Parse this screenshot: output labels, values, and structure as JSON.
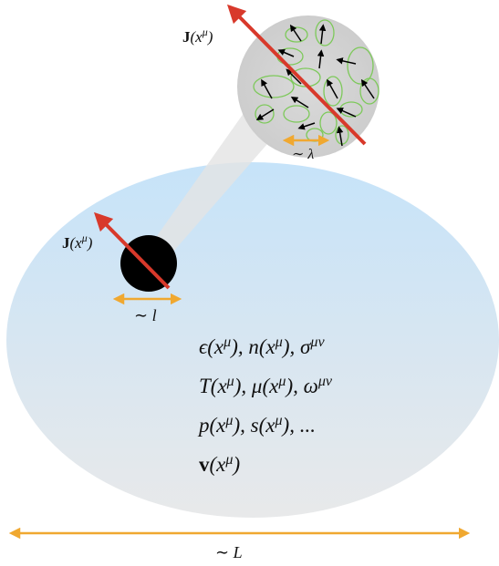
{
  "labels": {
    "current_top": [
      {
        "text": "J",
        "bold": true
      },
      {
        "text": "(x"
      },
      {
        "text": "μ",
        "sup": true
      },
      {
        "text": ")"
      }
    ],
    "current_left": [
      {
        "text": "J",
        "bold": true
      },
      {
        "text": "(x"
      },
      {
        "text": "μ",
        "sup": true
      },
      {
        "text": ")"
      }
    ],
    "lambda_scale": [
      {
        "text": "∼ λ"
      }
    ],
    "l_scale": [
      {
        "text": "∼ l"
      }
    ],
    "L_scale": [
      {
        "text": "∼ L"
      }
    ]
  },
  "equations": [
    [
      {
        "text": "ϵ(x"
      },
      {
        "text": "μ",
        "sup": true
      },
      {
        "text": "), n(x"
      },
      {
        "text": "μ",
        "sup": true
      },
      {
        "text": "), σ"
      },
      {
        "text": "μν",
        "sup": true
      }
    ],
    [
      {
        "text": "T(x"
      },
      {
        "text": "μ",
        "sup": true
      },
      {
        "text": "), μ(x"
      },
      {
        "text": "μ",
        "sup": true
      },
      {
        "text": "), ω"
      },
      {
        "text": "μν",
        "sup": true
      }
    ],
    [
      {
        "text": "p(x"
      },
      {
        "text": "μ",
        "sup": true
      },
      {
        "text": "), s(x"
      },
      {
        "text": "μ",
        "sup": true
      },
      {
        "text": "), ..."
      }
    ],
    [
      {
        "text": "v",
        "bold": true
      },
      {
        "text": "(x"
      },
      {
        "text": "μ",
        "sup": true
      },
      {
        "text": ")"
      }
    ]
  ]
}
